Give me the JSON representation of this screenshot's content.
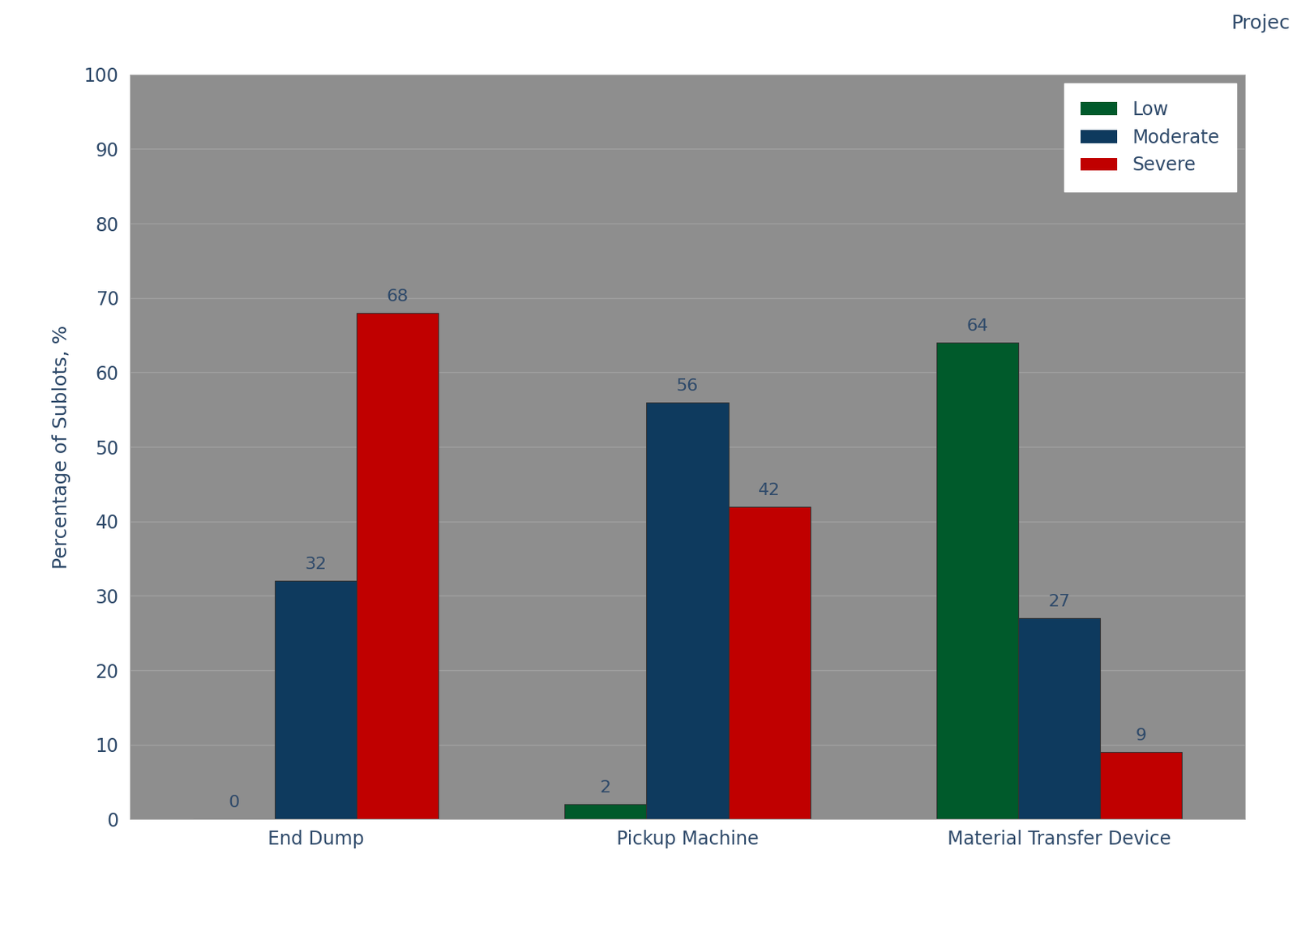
{
  "chart_data": {
    "type": "bar",
    "categories": [
      "End Dump",
      "Pickup Machine",
      "Material Transfer Device"
    ],
    "series": [
      {
        "name": "Low",
        "color": "#005a2b",
        "values": [
          0,
          2,
          64
        ]
      },
      {
        "name": "Moderate",
        "color": "#0e3a5e",
        "values": [
          32,
          56,
          27
        ]
      },
      {
        "name": "Severe",
        "color": "#c00000",
        "values": [
          68,
          42,
          9
        ]
      }
    ],
    "y_label": "Percentage of Sublots, %",
    "ylim": [
      0,
      100
    ],
    "yticks": [
      0,
      10,
      20,
      30,
      40,
      50,
      60,
      70,
      80,
      90,
      100
    ],
    "grid": true,
    "legend": "upper right",
    "data_labels": true,
    "annotations": [
      "Projec"
    ]
  }
}
